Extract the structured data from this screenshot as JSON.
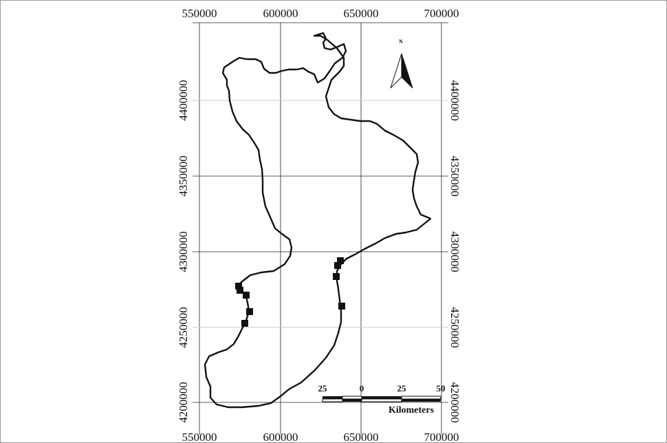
{
  "map": {
    "x_axis": {
      "top_labels": [
        "550000",
        "600000",
        "650000",
        "700000"
      ],
      "bottom_labels": [
        "550000",
        "600000",
        "650000",
        "700000"
      ]
    },
    "y_axis": {
      "left_labels": [
        "4400000",
        "4350000",
        "4300000",
        "4250000",
        "4200000"
      ],
      "right_labels": [
        "4400000",
        "4350000",
        "4300000",
        "4250000",
        "4200000"
      ]
    },
    "north_arrow": {
      "letter": "N",
      "icon": "north-arrow-icon"
    },
    "scale_bar": {
      "ticks": [
        "25",
        "0",
        "25",
        "50"
      ],
      "unit": "Kilometers"
    },
    "site_markers_count": 10
  }
}
